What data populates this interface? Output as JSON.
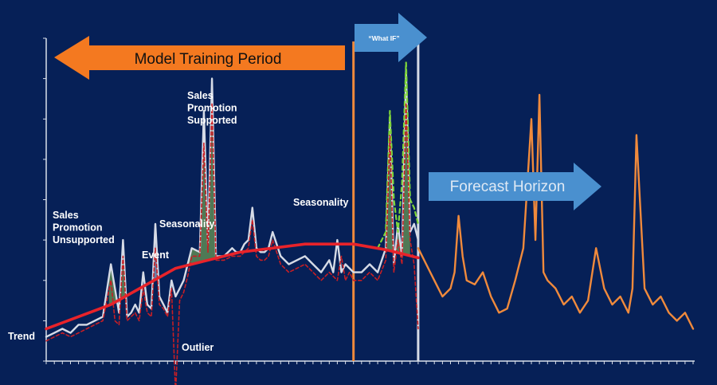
{
  "chart_data": {
    "type": "line",
    "title": "",
    "xlabel": "",
    "ylabel": "",
    "grid": false,
    "legend": "none",
    "xlim": [
      0,
      160
    ],
    "ylim": [
      0,
      40
    ],
    "colors": {
      "background": "#062057",
      "actual": "#d6dbe6",
      "model": "#c81e24",
      "trend": "#e8232a",
      "forecast": "#f08a3c",
      "what_if": "#7fd63a",
      "fill_promo": "#5d8a55",
      "fill_seasonal": "#7e8fb5",
      "axis": "#d9dfea",
      "banner_training": "#f47920",
      "banner_forecast": "#4a90cf"
    },
    "banners": {
      "training": "Model Training Period",
      "what_if": "“What IF”",
      "forecast": "Forecast Horizon"
    },
    "annotations": {
      "promo_unsupported": [
        "Sales",
        "Promotion",
        "Unsupported"
      ],
      "event": "Event",
      "seasonality_1": "Seasonality",
      "promo_supported": [
        "Sales",
        "Promotion",
        "Supported"
      ],
      "seasonality_2": "Seasonality",
      "outlier": "Outlier",
      "trend": "Trend"
    },
    "markers": {
      "training_end_x": 76,
      "what_if_end_x": 92
    },
    "series": [
      {
        "name": "Actual",
        "x": [
          0,
          2,
          4,
          6,
          8,
          10,
          12,
          14,
          16,
          18,
          19,
          20,
          21,
          22,
          23,
          24,
          25,
          26,
          27,
          28,
          29,
          30,
          31,
          32,
          33,
          34,
          35,
          36,
          38,
          39,
          40,
          41,
          42,
          44,
          46,
          47,
          48,
          49,
          50,
          51,
          52,
          53,
          54,
          55,
          56,
          58,
          60,
          62,
          64,
          66,
          68,
          70,
          71,
          72,
          73,
          74,
          76,
          78,
          80,
          82,
          84,
          85,
          86,
          87,
          88,
          89,
          90,
          91,
          92
        ],
        "y": [
          3,
          3.5,
          4,
          3.5,
          4.5,
          4.5,
          5,
          5.5,
          12,
          6,
          15,
          5.5,
          6,
          7,
          6,
          11,
          7,
          6.5,
          17,
          8,
          7,
          6,
          10,
          8,
          9,
          10,
          12,
          14,
          13.5,
          31,
          14.5,
          35,
          13,
          13,
          14,
          13.5,
          13.5,
          14.5,
          15,
          19,
          14,
          13.5,
          13.5,
          14,
          16,
          13,
          12,
          12.5,
          13,
          12,
          11,
          12.5,
          11,
          15,
          11,
          12,
          11,
          11,
          12,
          11,
          14,
          30,
          12,
          17,
          13,
          36,
          16,
          17,
          15
        ]
      },
      {
        "name": "Model",
        "x": [
          0,
          2,
          4,
          6,
          8,
          10,
          12,
          14,
          16,
          17,
          18,
          19,
          20,
          21,
          22,
          23,
          24,
          25,
          26,
          27,
          28,
          29,
          30,
          31,
          32,
          33,
          34,
          35,
          36,
          38,
          39,
          40,
          41,
          42,
          44,
          46,
          48,
          49,
          50,
          51,
          52,
          53,
          54,
          55,
          56,
          58,
          60,
          62,
          64,
          66,
          68,
          70,
          72,
          73,
          74,
          75,
          76,
          78,
          80,
          82,
          84,
          85,
          86,
          87,
          88,
          89,
          90,
          91,
          92
        ],
        "y": [
          2.5,
          3,
          3.5,
          3,
          3.5,
          4,
          4.5,
          5,
          10,
          5,
          4.5,
          13,
          5,
          5.5,
          6,
          5,
          9,
          6,
          5.5,
          14,
          7,
          6.5,
          5.5,
          9,
          -4,
          7.5,
          8.5,
          10.5,
          13,
          13,
          27,
          13.5,
          32,
          12.5,
          12.5,
          13,
          13,
          13.5,
          14,
          17.5,
          13,
          12.5,
          12.5,
          13,
          15,
          12,
          11,
          11.5,
          12,
          11,
          10,
          11,
          10,
          13,
          10,
          11,
          10,
          10,
          11,
          10,
          12.5,
          28,
          11,
          15,
          12,
          32,
          15,
          12,
          4
        ]
      },
      {
        "name": "Trend",
        "x": [
          0,
          16,
          32,
          48,
          64,
          76,
          84,
          92
        ],
        "y": [
          4,
          7,
          11.5,
          13.5,
          14.5,
          14.5,
          13.8,
          12.8
        ]
      },
      {
        "name": "What IF",
        "x": [
          82,
          84,
          85,
          86,
          87,
          88,
          89,
          90,
          91,
          92
        ],
        "y": [
          14,
          16,
          31,
          20,
          16,
          22,
          37,
          20,
          19,
          17
        ]
      },
      {
        "name": "Forecast",
        "x": [
          92,
          94,
          96,
          98,
          100,
          101,
          102,
          103,
          104,
          106,
          108,
          110,
          112,
          114,
          116,
          118,
          120,
          121,
          122,
          123,
          124,
          126,
          128,
          130,
          132,
          134,
          136,
          138,
          140,
          142,
          144,
          145,
          146,
          148,
          150,
          152,
          154,
          156,
          158,
          160
        ],
        "y": [
          14,
          12,
          10,
          8,
          9,
          11,
          18,
          13,
          10,
          9.5,
          11,
          8,
          6,
          6.5,
          10,
          14,
          30,
          15,
          33,
          11,
          10,
          9,
          7,
          8,
          6,
          7.5,
          14,
          9,
          7,
          8,
          6,
          9,
          28,
          9,
          7,
          8,
          6,
          5,
          6,
          4
        ]
      }
    ]
  }
}
